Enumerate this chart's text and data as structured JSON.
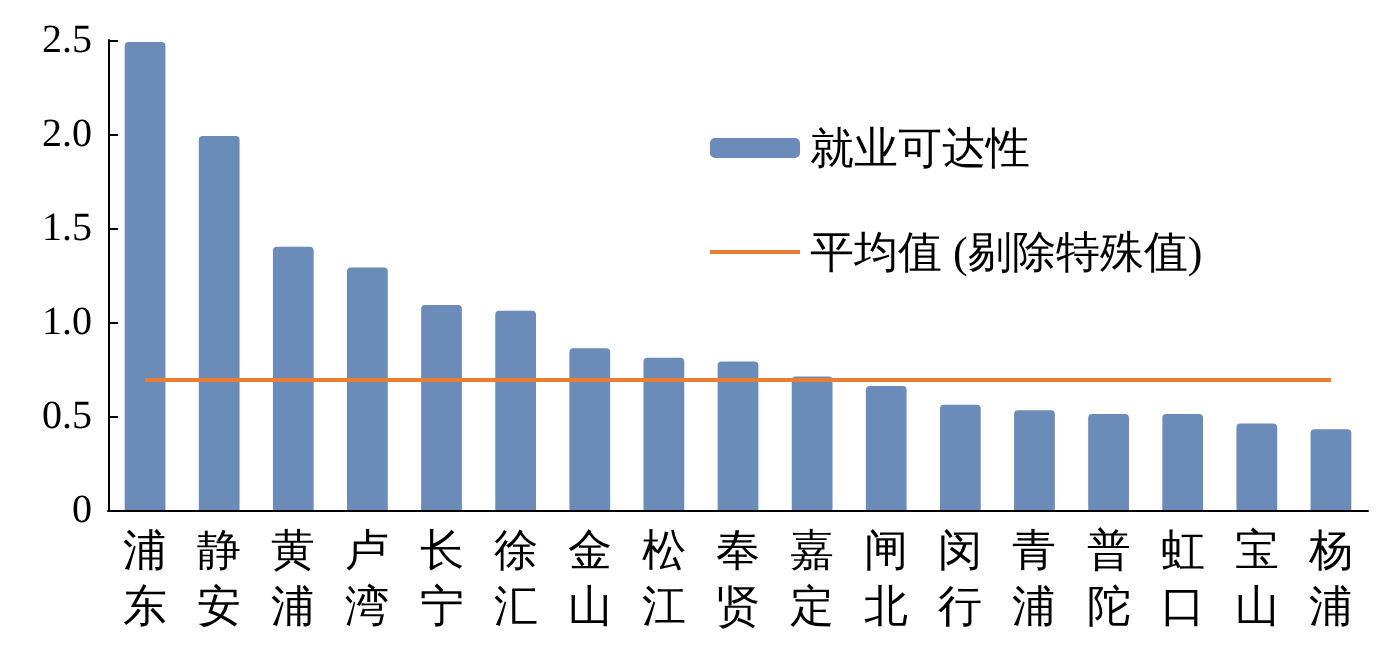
{
  "chart_data": {
    "type": "bar",
    "categories": [
      "浦东",
      "静安",
      "黄浦",
      "卢湾",
      "长宁",
      "徐汇",
      "金山",
      "松江",
      "奉贤",
      "嘉定",
      "闸北",
      "闵行",
      "青浦",
      "普陀",
      "虹口",
      "宝山",
      "杨浦"
    ],
    "series": [
      {
        "name": "就业可达性",
        "color": "#6b8cb8",
        "values": [
          2.49,
          1.99,
          1.4,
          1.29,
          1.09,
          1.06,
          0.86,
          0.81,
          0.79,
          0.71,
          0.66,
          0.56,
          0.53,
          0.51,
          0.51,
          0.46,
          0.43
        ]
      }
    ],
    "ref_lines": [
      {
        "axis": "y",
        "value": 0.69,
        "label": "平均值 (剔除特殊值)",
        "color": "#ed7d31"
      }
    ],
    "ylim": [
      0,
      2.5
    ],
    "yticks": [
      0,
      0.5,
      {
        "value": 1,
        "label": "1.0"
      },
      1.5,
      {
        "value": 2,
        "label": "2.0"
      },
      2.5
    ],
    "grid": false,
    "legend": "top right"
  }
}
